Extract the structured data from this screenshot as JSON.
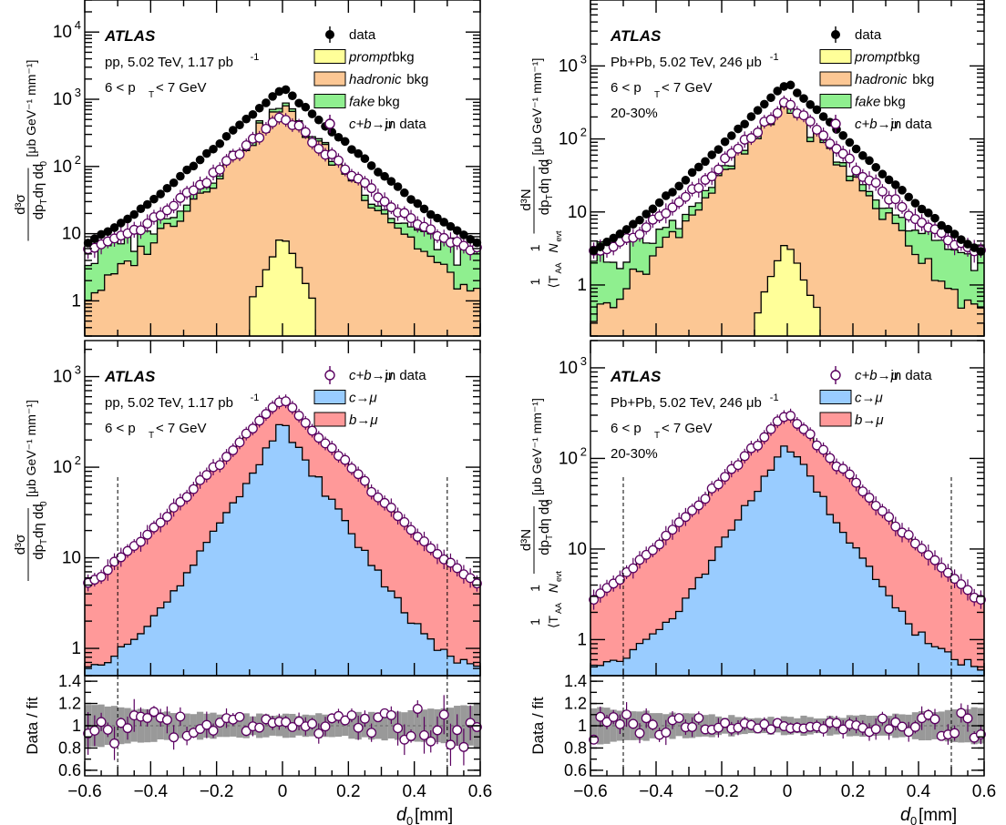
{
  "chart_data": [
    {
      "id": "pp_bkg",
      "type": "histogram",
      "experiment": "ATLAS",
      "system_label": "pp, 5.02 TeV, 1.17 pb",
      "system_sup": "-1",
      "pt_label": "6 < p",
      "pt_sub": "T",
      "pt_tail": " < 7 GeV",
      "centrality": "",
      "ylabel": "d³σ / dp_T dη dd_0  [μb GeV⁻¹ mm⁻¹]",
      "ylim": [
        0.3,
        30000
      ],
      "log_y": true,
      "yticks": [
        {
          "v": 1,
          "t": "1"
        },
        {
          "v": 10,
          "t": "10"
        },
        {
          "v": 100,
          "t": "10",
          "sup": "2"
        },
        {
          "v": 1000,
          "t": "10",
          "sup": "3"
        },
        {
          "v": 10000,
          "t": "10",
          "sup": "4"
        }
      ],
      "legend": [
        {
          "key": "data",
          "label": "data",
          "marker": "filled",
          "italic": false
        },
        {
          "key": "prompt",
          "label": "prompt",
          "tail": " bkg",
          "color": "#ffff99",
          "italic": true
        },
        {
          "key": "hadronic",
          "label": "hadronic",
          "tail": " bkg",
          "color": "#fcc794",
          "italic": true
        },
        {
          "key": "fake",
          "label": "fake",
          "tail": " bkg",
          "color": "#8fef8f",
          "italic": true
        },
        {
          "key": "cb",
          "label": "c+b→μ",
          "tail": " in data",
          "marker": "open",
          "italic": true
        }
      ],
      "series_shapes": {
        "data_peak": 1500,
        "data_edge": 7,
        "hadronic_peak": 780,
        "hadronic_edge": 1.1,
        "fake_level": 4,
        "prompt_peak": 10,
        "cb_peak": 600,
        "cb_edge": 5.5
      }
    },
    {
      "id": "pbpb_bkg",
      "type": "histogram",
      "experiment": "ATLAS",
      "system_label": "Pb+Pb, 5.02 TeV, 246 μb",
      "system_sup": "-1",
      "pt_label": "6 < p",
      "pt_sub": "T",
      "pt_tail": " < 7 GeV",
      "centrality": "20-30%",
      "ylabel": "1/⟨T_AA⟩ 1/N_evt d³N / dp_T dη dd_0  [μb GeV⁻¹ mm⁻¹]",
      "ylim": [
        0.2,
        8000
      ],
      "log_y": true,
      "yticks": [
        {
          "v": 1,
          "t": "1"
        },
        {
          "v": 10,
          "t": "10"
        },
        {
          "v": 100,
          "t": "10",
          "sup": "2"
        },
        {
          "v": 1000,
          "t": "10",
          "sup": "3"
        }
      ],
      "legend": [
        {
          "key": "data",
          "label": "data",
          "marker": "filled",
          "italic": false
        },
        {
          "key": "prompt",
          "label": "prompt",
          "tail": " bkg",
          "color": "#ffff99",
          "italic": true
        },
        {
          "key": "hadronic",
          "label": "hadronic",
          "tail": " bkg",
          "color": "#fcc794",
          "italic": true
        },
        {
          "key": "fake",
          "label": "fake",
          "tail": " bkg",
          "color": "#8fef8f",
          "italic": true
        },
        {
          "key": "cb",
          "label": "c+b→μ",
          "tail": " in data",
          "marker": "open",
          "italic": true
        }
      ],
      "series_shapes": {
        "data_peak": 600,
        "data_edge": 2.8,
        "hadronic_peak": 300,
        "hadronic_edge": 0.35,
        "fake_level": 2.2,
        "prompt_peak": 4.3,
        "cb_peak": 320,
        "cb_edge": 2.7
      }
    },
    {
      "id": "pp_signal",
      "type": "histogram",
      "experiment": "ATLAS",
      "system_label": "pp, 5.02 TeV, 1.17 pb",
      "system_sup": "-1",
      "pt_label": "6 < p",
      "pt_sub": "T",
      "pt_tail": " < 7 GeV",
      "centrality": "",
      "ylabel": "d³σ / dp_T dη dd_0  [μb GeV⁻¹ mm⁻¹]",
      "ylim": [
        0.5,
        2500
      ],
      "log_y": true,
      "yticks": [
        {
          "v": 1,
          "t": "1"
        },
        {
          "v": 10,
          "t": "10"
        },
        {
          "v": 100,
          "t": "10",
          "sup": "2"
        },
        {
          "v": 1000,
          "t": "10",
          "sup": "3"
        }
      ],
      "legend": [
        {
          "key": "cb",
          "label": "c+b→μ",
          "tail": " in data",
          "marker": "open",
          "italic": true
        },
        {
          "key": "c",
          "label": "c→μ",
          "tail": "",
          "color": "#99ccff",
          "italic": true
        },
        {
          "key": "b",
          "label": "b→μ",
          "tail": "",
          "color": "#ff9999",
          "italic": true
        }
      ],
      "vlines": [
        -0.5,
        0.5
      ],
      "series_shapes": {
        "cb_peak": 580,
        "cb_edge": 4.8,
        "c_peak": 300,
        "c_edge": 0.6
      }
    },
    {
      "id": "pbpb_signal",
      "type": "histogram",
      "experiment": "ATLAS",
      "system_label": "Pb+Pb, 5.02 TeV, 246 μb",
      "system_sup": "-1",
      "pt_label": "6 < p",
      "pt_sub": "T",
      "pt_tail": " < 7 GeV",
      "centrality": "20-30%",
      "ylabel": "1/⟨T_AA⟩ 1/N_evt d³N / dp_T dη dd_0  [μb GeV⁻¹ mm⁻¹]",
      "ylim": [
        0.4,
        2000
      ],
      "log_y": true,
      "yticks": [
        {
          "v": 1,
          "t": "1"
        },
        {
          "v": 10,
          "t": "10"
        },
        {
          "v": 100,
          "t": "10",
          "sup": "2"
        },
        {
          "v": 1000,
          "t": "10",
          "sup": "3"
        }
      ],
      "legend": [
        {
          "key": "cb",
          "label": "c+b→μ",
          "tail": " in data",
          "marker": "open",
          "italic": true
        },
        {
          "key": "c",
          "label": "c→μ",
          "tail": "",
          "color": "#99ccff",
          "italic": true
        },
        {
          "key": "b",
          "label": "b→μ",
          "tail": "",
          "color": "#ff9999",
          "italic": true
        }
      ],
      "vlines": [
        -0.5,
        0.5
      ],
      "series_shapes": {
        "cb_peak": 320,
        "cb_edge": 2.6,
        "c_peak": 150,
        "c_edge": 0.5
      }
    },
    {
      "id": "pp_ratio",
      "type": "scatter",
      "ylabel": "Data / fit",
      "xlabel": "d",
      "xlabel_sub": "0",
      "xlabel_unit": " [mm]",
      "xlim": [
        -0.6,
        0.6
      ],
      "ylim": [
        0.55,
        1.45
      ],
      "xticks": [
        "−0.6",
        "−0.4",
        "−0.2",
        "0",
        "0.2",
        "0.4",
        "0.6"
      ],
      "yticks": [
        "0.6",
        "0.8",
        "1",
        "1.2",
        "1.4"
      ],
      "band_color": "#999999",
      "vlines": [
        -0.5,
        0.5
      ]
    },
    {
      "id": "pbpb_ratio",
      "type": "scatter",
      "ylabel": "Data / fit",
      "xlabel": "d",
      "xlabel_sub": "0",
      "xlabel_unit": " [mm]",
      "xlim": [
        -0.6,
        0.6
      ],
      "ylim": [
        0.55,
        1.45
      ],
      "xticks": [
        "−0.6",
        "−0.4",
        "−0.2",
        "0",
        "0.2",
        "0.4",
        "0.6"
      ],
      "yticks": [
        "0.6",
        "0.8",
        "1",
        "1.2",
        "1.4"
      ],
      "band_color": "#999999",
      "vlines": [
        -0.5,
        0.5
      ]
    }
  ]
}
